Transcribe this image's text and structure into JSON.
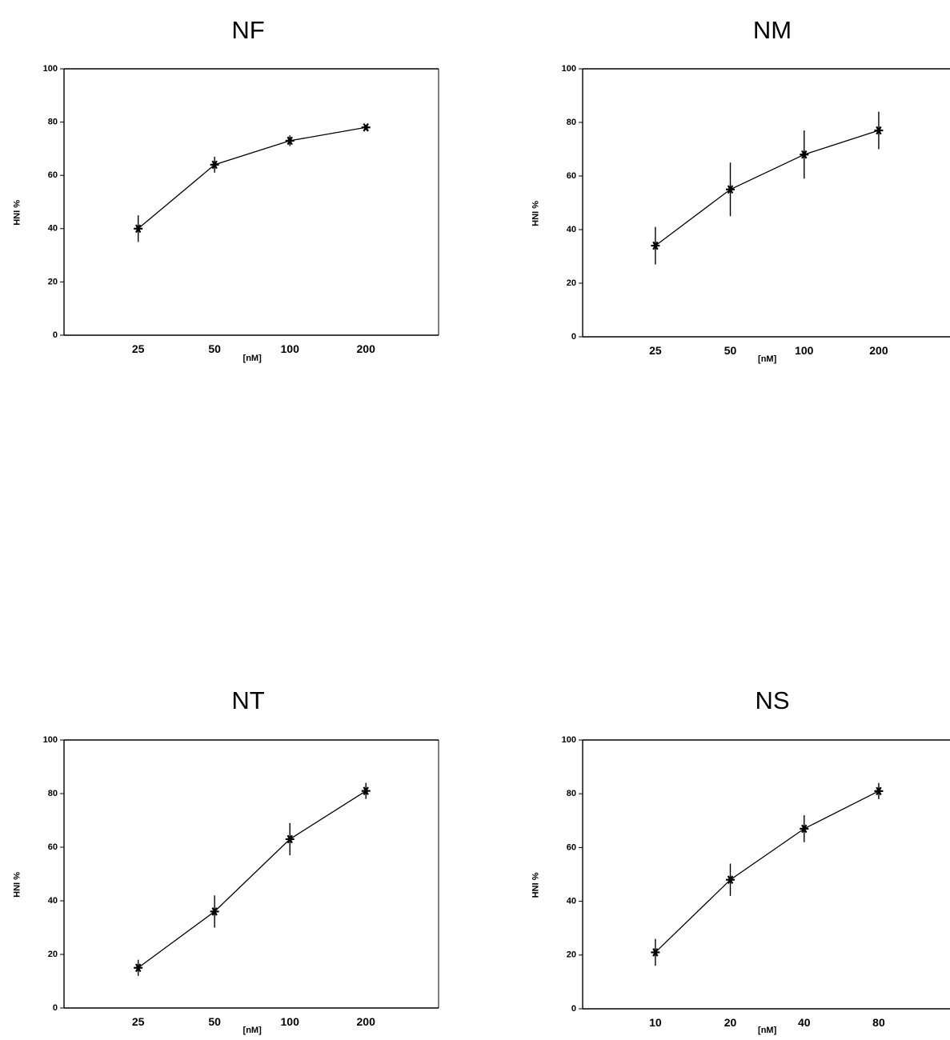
{
  "chart_data": [
    {
      "type": "line",
      "title": "NF",
      "xlabel": "[nM]",
      "ylabel": "% INH",
      "categories": [
        "25",
        "50",
        "100",
        "200"
      ],
      "ylim": [
        0,
        100
      ],
      "yticks": [
        "0",
        "20",
        "40",
        "60",
        "80",
        "100"
      ],
      "grid": false,
      "series": [
        {
          "values": [
            40,
            64,
            73,
            78
          ],
          "error": [
            5,
            3,
            2,
            1
          ]
        }
      ]
    },
    {
      "type": "line",
      "title": "NM",
      "xlabel": "[nM]",
      "ylabel": "% INH",
      "categories": [
        "25",
        "50",
        "100",
        "200"
      ],
      "ylim": [
        0,
        100
      ],
      "yticks": [
        "0",
        "20",
        "40",
        "60",
        "80",
        "100"
      ],
      "grid": false,
      "series": [
        {
          "values": [
            34,
            55,
            68,
            77
          ],
          "error": [
            7,
            10,
            9,
            7
          ]
        }
      ]
    },
    {
      "type": "line",
      "title": "NT",
      "xlabel": "[nM]",
      "ylabel": "% INH",
      "categories": [
        "25",
        "50",
        "100",
        "200"
      ],
      "ylim": [
        0,
        100
      ],
      "yticks": [
        "0",
        "20",
        "40",
        "60",
        "80",
        "100"
      ],
      "grid": false,
      "series": [
        {
          "values": [
            15,
            36,
            63,
            81
          ],
          "error": [
            3,
            6,
            6,
            3
          ]
        }
      ]
    },
    {
      "type": "line",
      "title": "NS",
      "xlabel": "[nM]",
      "ylabel": "% INH",
      "categories": [
        "10",
        "20",
        "40",
        "80"
      ],
      "ylim": [
        0,
        100
      ],
      "yticks": [
        "0",
        "20",
        "40",
        "60",
        "80",
        "100"
      ],
      "grid": false,
      "series": [
        {
          "values": [
            21,
            48,
            67,
            81
          ],
          "error": [
            5,
            6,
            5,
            3
          ]
        }
      ]
    }
  ]
}
